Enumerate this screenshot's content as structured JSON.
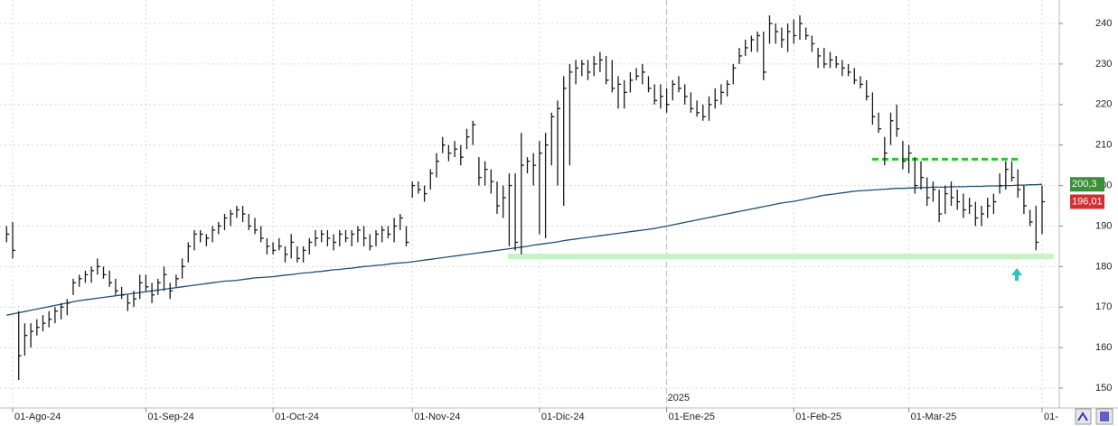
{
  "chart_data": {
    "type": "ohlc",
    "year_label": "2025",
    "categories": [
      null,
      "01-Ago-24",
      null,
      null,
      null,
      null,
      null,
      null,
      null,
      null,
      null,
      null,
      null,
      null,
      null,
      null,
      null,
      null,
      null,
      null,
      null,
      null,
      null,
      "01-Sep-24",
      null,
      null,
      null,
      null,
      null,
      null,
      null,
      null,
      null,
      null,
      null,
      null,
      null,
      null,
      null,
      null,
      null,
      null,
      null,
      null,
      "01-Oct-24",
      null,
      null,
      null,
      null,
      null,
      null,
      null,
      null,
      null,
      null,
      null,
      null,
      null,
      null,
      null,
      null,
      null,
      null,
      null,
      null,
      null,
      null,
      "01-Nov-24",
      null,
      null,
      null,
      null,
      null,
      null,
      null,
      null,
      null,
      null,
      null,
      null,
      null,
      null,
      null,
      null,
      null,
      null,
      null,
      null,
      "01-Dic-24",
      null,
      null,
      null,
      null,
      null,
      null,
      null,
      null,
      null,
      null,
      null,
      null,
      null,
      null,
      null,
      null,
      null,
      null,
      null,
      null,
      "01-Ene-25",
      null,
      null,
      null,
      null,
      null,
      null,
      null,
      null,
      null,
      null,
      null,
      null,
      null,
      null,
      null,
      null,
      null,
      null,
      null,
      null,
      "01-Feb-25",
      null,
      null,
      null,
      null,
      null,
      null,
      null,
      null,
      null,
      null,
      null,
      null,
      null,
      null,
      null,
      null,
      null,
      null,
      "01-Mar-25",
      null,
      null,
      null,
      null,
      null,
      null,
      null,
      null,
      null,
      null,
      null,
      null,
      null,
      null,
      null,
      null,
      null,
      null,
      null,
      null,
      null,
      "01-"
    ],
    "high": [
      190,
      191,
      169,
      166,
      166,
      167,
      168,
      169,
      170,
      171,
      172,
      177,
      178,
      179,
      180,
      182,
      180,
      179,
      177,
      175,
      173,
      174,
      178,
      178,
      176,
      177,
      180,
      176,
      178,
      182,
      186,
      189,
      189,
      188,
      190,
      191,
      193,
      194,
      195,
      195,
      193,
      192,
      190,
      187,
      186,
      187,
      185,
      188,
      185,
      185,
      187,
      189,
      189,
      189,
      188,
      189,
      189,
      189,
      190,
      190,
      188,
      189,
      190,
      190,
      192,
      193,
      190,
      201,
      201,
      200,
      204,
      208,
      212,
      210,
      211,
      210,
      214,
      216,
      207,
      206,
      204,
      201,
      200,
      203,
      203,
      213,
      207,
      208,
      211,
      213,
      218,
      221,
      227,
      230,
      231,
      231,
      231,
      232,
      233,
      232,
      231,
      227,
      226,
      228,
      229,
      230,
      227,
      225,
      225,
      224,
      226,
      227,
      225,
      223,
      221,
      220,
      222,
      224,
      225,
      226,
      230,
      234,
      236,
      237,
      238,
      238,
      242,
      240,
      239,
      240,
      241,
      242,
      239,
      237,
      234,
      234,
      233,
      232,
      231,
      230,
      229,
      227,
      226,
      223,
      218,
      212,
      218,
      220,
      211,
      210,
      207,
      206,
      202,
      201,
      199,
      200,
      201,
      199,
      198,
      197,
      196,
      195,
      197,
      198,
      203,
      206,
      206,
      204,
      200,
      194,
      195,
      200
    ],
    "low": [
      186,
      182,
      152,
      158,
      160,
      163,
      164,
      165,
      166,
      167,
      168,
      173,
      175,
      176,
      176,
      178,
      177,
      175,
      173,
      172,
      169,
      170,
      172,
      174,
      171,
      173,
      174,
      172,
      175,
      177,
      181,
      184,
      186,
      185,
      186,
      188,
      189,
      190,
      192,
      191,
      189,
      188,
      186,
      183,
      183,
      184,
      181,
      182,
      181,
      181,
      183,
      185,
      186,
      185,
      184,
      185,
      186,
      185,
      186,
      185,
      184,
      185,
      186,
      187,
      186,
      189,
      185,
      197,
      198,
      196,
      199,
      202,
      208,
      206,
      207,
      205,
      209,
      210,
      200,
      200,
      198,
      193,
      192,
      185,
      184,
      183,
      203,
      200,
      188,
      187,
      205,
      200,
      195,
      205,
      225,
      227,
      226,
      227,
      228,
      225,
      223,
      219,
      219,
      223,
      226,
      225,
      223,
      220,
      219,
      218,
      221,
      223,
      220,
      218,
      217,
      216,
      216,
      219,
      220,
      222,
      225,
      230,
      232,
      233,
      233,
      226,
      235,
      235,
      234,
      233,
      235,
      236,
      236,
      233,
      229,
      229,
      229,
      229,
      227,
      227,
      225,
      224,
      221,
      215,
      213,
      205,
      210,
      212,
      204,
      203,
      198,
      199,
      195,
      196,
      191,
      193,
      195,
      194,
      192,
      193,
      190,
      190,
      192,
      193,
      198,
      199,
      201,
      197,
      193,
      190,
      184,
      188
    ],
    "close": [
      188,
      184,
      158,
      163,
      164,
      165,
      166,
      167,
      169,
      170,
      171,
      176,
      177,
      178,
      179,
      180,
      178,
      176,
      174,
      173,
      171,
      172,
      176,
      175,
      173,
      176,
      178,
      174,
      177,
      180,
      185,
      188,
      188,
      187,
      189,
      190,
      192,
      193,
      194,
      193,
      190,
      189,
      187,
      185,
      184,
      185,
      183,
      186,
      182,
      184,
      186,
      187,
      188,
      187,
      186,
      188,
      187,
      188,
      189,
      187,
      185,
      188,
      189,
      188,
      190,
      192,
      186,
      200,
      199,
      198,
      203,
      206,
      210,
      208,
      209,
      207,
      212,
      215,
      202,
      204,
      201,
      195,
      197,
      200,
      186,
      205,
      206,
      205,
      208,
      210,
      217,
      219,
      224,
      228,
      229,
      230,
      228,
      230,
      231,
      226,
      224,
      225,
      223,
      226,
      227,
      228,
      224,
      221,
      222,
      220,
      225,
      224,
      222,
      219,
      218,
      217,
      220,
      221,
      223,
      225,
      229,
      232,
      234,
      236,
      237,
      228,
      240,
      238,
      236,
      238,
      237,
      240,
      237,
      235,
      232,
      230,
      231,
      230,
      229,
      228,
      226,
      225,
      222,
      217,
      214,
      208,
      216,
      214,
      206,
      208,
      200,
      202,
      197,
      199,
      193,
      198,
      197,
      196,
      194,
      195,
      192,
      193,
      195,
      196,
      200,
      204,
      202,
      199,
      195,
      191,
      186,
      196.01
    ],
    "bar_color": "#1a1a1a",
    "ma": [
      168.0,
      168.3,
      168.6,
      168.9,
      169.2,
      169.5,
      169.8,
      170.1,
      170.4,
      170.7,
      171.0,
      171.3,
      171.6,
      171.8,
      172.0,
      172.2,
      172.4,
      172.6,
      172.8,
      173.0,
      173.2,
      173.4,
      173.6,
      173.8,
      174.0,
      174.2,
      174.4,
      174.6,
      174.8,
      175.0,
      175.2,
      175.4,
      175.6,
      175.8,
      176.0,
      176.2,
      176.4,
      176.5,
      176.6,
      176.8,
      177.0,
      177.2,
      177.3,
      177.4,
      177.5,
      177.7,
      177.9,
      178.0,
      178.2,
      178.4,
      178.5,
      178.7,
      178.8,
      179.0,
      179.2,
      179.3,
      179.5,
      179.6,
      179.8,
      180.0,
      180.1,
      180.3,
      180.4,
      180.6,
      180.8,
      180.9,
      181.0,
      181.2,
      181.4,
      181.6,
      181.8,
      182.0,
      182.2,
      182.4,
      182.6,
      182.8,
      183.0,
      183.2,
      183.4,
      183.6,
      183.8,
      184.0,
      184.2,
      184.4,
      184.6,
      184.8,
      185.0,
      185.3,
      185.5,
      185.7,
      185.9,
      186.1,
      186.4,
      186.6,
      186.8,
      187.0,
      187.2,
      187.4,
      187.6,
      187.8,
      188.0,
      188.2,
      188.4,
      188.6,
      188.8,
      189.0,
      189.2,
      189.4,
      189.7,
      190.0,
      190.3,
      190.6,
      190.9,
      191.2,
      191.5,
      191.8,
      192.1,
      192.4,
      192.7,
      193.0,
      193.3,
      193.6,
      193.9,
      194.2,
      194.5,
      194.8,
      195.1,
      195.4,
      195.7,
      195.9,
      196.1,
      196.4,
      196.7,
      197.0,
      197.3,
      197.6,
      197.8,
      198.0,
      198.2,
      198.4,
      198.6,
      198.7,
      198.8,
      198.9,
      199.0,
      199.1,
      199.2,
      199.3,
      199.3,
      199.4,
      199.4,
      199.5,
      199.5,
      199.6,
      199.6,
      199.6,
      199.7,
      199.7,
      199.7,
      199.8,
      199.8,
      199.8,
      199.9,
      199.9,
      199.9,
      200.0,
      200.0,
      200.1,
      200.1,
      200.2,
      200.2,
      200.3
    ],
    "ma_color": "#1f4f78",
    "ma_label": {
      "value": 200.3,
      "label": "200,3",
      "color": "#3a8f3a"
    },
    "last_label": {
      "value": 196.01,
      "label": "196,01",
      "color": "#d03030"
    },
    "support": {
      "value": 182.5,
      "color": "#c6f2c6"
    },
    "resistance": {
      "value": 206.5,
      "color": "#22cc22"
    },
    "ylim": [
      145.1,
      245.8
    ],
    "yticks": [
      150,
      160,
      170,
      180,
      190,
      200,
      210,
      220,
      230,
      240
    ],
    "grid": true
  }
}
